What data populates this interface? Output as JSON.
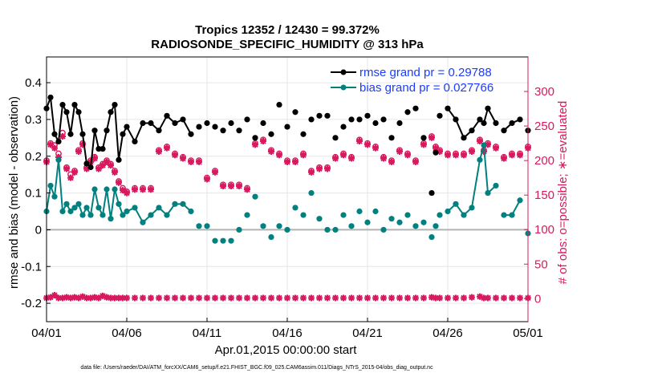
{
  "colors": {
    "rmse": "#000000",
    "bias": "#00807f",
    "obs": "#d9185f",
    "legend_text": "#1a3cff",
    "grid": "#e6e6e6",
    "zero_line": "#b3b3b3"
  },
  "chart_data": {
    "type": "line",
    "title": "Tropics 12352 / 12430 = 99.372%",
    "subtitle": "RADIOSONDE_SPECIFIC_HUMIDITY @ 313 hPa",
    "xlabel": "Apr.01,2015 00:00:00 start",
    "ylabel_left": "rmse and bias (model - observation)",
    "ylabel_right": "# of obs: o=possible; ∗=evaluated",
    "xlim": [
      0,
      30
    ],
    "ylim_left": [
      -0.25,
      0.47
    ],
    "ylim_right": [
      -33.3,
      350
    ],
    "x_tick_values": [
      0,
      5,
      10,
      15,
      20,
      25,
      30
    ],
    "x_tick_labels": [
      "04/01",
      "04/06",
      "04/11",
      "04/16",
      "04/21",
      "04/26",
      "05/01"
    ],
    "y_left_ticks": [
      -0.2,
      -0.1,
      0,
      0.1,
      0.2,
      0.3,
      0.4
    ],
    "y_left_tick_labels": [
      "-0.2",
      "-0.1",
      "0",
      "0.1",
      "0.2",
      "0.3",
      "0.4"
    ],
    "y_right_ticks": [
      0,
      50,
      100,
      150,
      200,
      250,
      300
    ],
    "y_right_tick_labels": [
      "0",
      "50",
      "100",
      "150",
      "200",
      "250",
      "300"
    ],
    "legend": [
      {
        "label": "rmse grand pr = 0.29788",
        "series": "rmse"
      },
      {
        "label": "bias grand pr = 0.027766",
        "series": "bias"
      }
    ],
    "series": [
      {
        "name": "rmse",
        "x": [
          0.0,
          0.25,
          0.5,
          0.75,
          1.0,
          1.25,
          1.5,
          1.75,
          2.0,
          2.25,
          2.5,
          2.75,
          3.0,
          3.25,
          3.5,
          3.75,
          4.0,
          4.25,
          4.5,
          4.75,
          5.0,
          5.5,
          6.0,
          6.5,
          7.0,
          7.5,
          8.0,
          8.5,
          9.0,
          9.5,
          10.0,
          10.5,
          11.0,
          11.5,
          12.0,
          12.5,
          13.0,
          13.5,
          14.0,
          14.5,
          15.0,
          15.5,
          16.0,
          16.5,
          17.0,
          17.5,
          18.0,
          18.5,
          19.0,
          19.5,
          20.0,
          20.5,
          21.0,
          21.5,
          22.0,
          22.5,
          23.0,
          23.5,
          24.0,
          24.25,
          24.5,
          25.0,
          25.5,
          26.0,
          26.5,
          27.0,
          27.25,
          27.5,
          28.0,
          28.5,
          29.0,
          29.5,
          30.0
        ],
        "values": [
          0.33,
          0.36,
          0.26,
          0.24,
          0.34,
          0.32,
          0.26,
          0.34,
          0.32,
          0.26,
          0.18,
          0.17,
          0.27,
          0.22,
          0.22,
          0.27,
          0.32,
          0.34,
          0.19,
          0.26,
          0.28,
          0.24,
          0.29,
          0.29,
          0.27,
          0.31,
          0.29,
          0.3,
          0.26,
          0.28,
          0.29,
          0.28,
          0.27,
          0.29,
          0.27,
          0.3,
          0.25,
          0.29,
          0.26,
          0.34,
          0.28,
          0.32,
          0.26,
          0.3,
          0.31,
          0.31,
          0.25,
          0.28,
          0.3,
          0.3,
          0.31,
          0.29,
          0.3,
          0.25,
          0.29,
          0.32,
          0.33,
          0.25,
          0.1,
          0.21,
          0.31,
          0.33,
          0.3,
          0.25,
          0.27,
          0.3,
          0.29,
          0.33,
          0.29,
          0.27,
          0.29,
          0.3,
          0.27
        ],
        "lines_segments": [
          [
            0,
            28
          ],
          [
            61,
            68
          ],
          [
            69,
            71
          ]
        ]
      },
      {
        "name": "bias",
        "x": [
          0.0,
          0.25,
          0.5,
          0.75,
          1.0,
          1.25,
          1.5,
          1.75,
          2.0,
          2.25,
          2.5,
          2.75,
          3.0,
          3.25,
          3.5,
          3.75,
          4.0,
          4.25,
          4.5,
          4.75,
          5.0,
          5.5,
          6.0,
          6.5,
          7.0,
          7.5,
          8.0,
          8.5,
          9.0,
          9.5,
          10.0,
          10.5,
          11.0,
          11.5,
          12.0,
          12.5,
          13.0,
          13.5,
          14.0,
          14.5,
          15.0,
          15.5,
          16.0,
          16.5,
          17.0,
          17.5,
          18.0,
          18.5,
          19.0,
          19.5,
          20.0,
          20.5,
          21.0,
          21.5,
          22.0,
          22.5,
          23.0,
          23.5,
          24.0,
          24.25,
          24.5,
          25.0,
          25.5,
          26.0,
          26.5,
          27.0,
          27.25,
          27.5,
          28.0,
          28.5,
          29.0,
          29.5,
          30.0
        ],
        "values": [
          0.05,
          0.12,
          0.09,
          0.19,
          0.05,
          0.07,
          0.05,
          0.06,
          0.07,
          0.04,
          0.06,
          0.04,
          0.11,
          0.06,
          0.04,
          0.11,
          0.03,
          0.11,
          0.07,
          0.04,
          0.05,
          0.06,
          0.02,
          0.04,
          0.06,
          0.04,
          0.07,
          0.07,
          0.05,
          0.01,
          0.01,
          -0.03,
          -0.03,
          -0.03,
          0.0,
          0.04,
          0.09,
          0.01,
          -0.02,
          0.01,
          0.0,
          0.06,
          0.04,
          0.1,
          0.03,
          0.0,
          0.0,
          0.04,
          0.01,
          0.05,
          0.02,
          0.05,
          0.0,
          0.03,
          0.02,
          0.04,
          0.01,
          0.02,
          -0.02,
          0.01,
          0.04,
          0.05,
          0.07,
          0.04,
          0.06,
          0.19,
          0.23,
          0.1,
          0.12,
          0.04,
          0.04,
          0.08,
          -0.01
        ],
        "lines_segments": [
          [
            0,
            28
          ],
          [
            61,
            68
          ],
          [
            69,
            71
          ]
        ]
      },
      {
        "name": "obs_possible",
        "x": [
          0.0,
          0.25,
          0.5,
          0.75,
          1.0,
          1.25,
          1.5,
          1.75,
          2.0,
          2.25,
          2.5,
          2.75,
          3.0,
          3.25,
          3.5,
          3.75,
          4.0,
          4.25,
          4.5,
          4.75,
          5.0,
          5.5,
          6.0,
          6.5,
          7.0,
          7.5,
          8.0,
          8.5,
          9.0,
          9.5,
          10.0,
          10.5,
          11.0,
          11.5,
          12.0,
          12.5,
          13.0,
          13.5,
          14.0,
          14.5,
          15.0,
          15.5,
          16.0,
          16.5,
          17.0,
          17.5,
          18.0,
          18.5,
          19.0,
          19.5,
          20.0,
          20.5,
          21.0,
          21.5,
          22.0,
          22.5,
          23.0,
          23.5,
          24.0,
          24.25,
          24.5,
          25.0,
          25.5,
          26.0,
          26.5,
          27.0,
          27.25,
          27.5,
          28.0,
          28.5,
          29.0,
          29.5,
          30.0
        ],
        "values": [
          200,
          225,
          222,
          210,
          240,
          190,
          180,
          185,
          215,
          225,
          190,
          200,
          205,
          190,
          195,
          200,
          195,
          185,
          170,
          160,
          155,
          160,
          160,
          160,
          215,
          220,
          210,
          205,
          200,
          200,
          175,
          185,
          165,
          165,
          165,
          160,
          225,
          230,
          215,
          210,
          200,
          200,
          210,
          185,
          190,
          190,
          205,
          210,
          205,
          230,
          225,
          220,
          205,
          200,
          215,
          210,
          200,
          225,
          235,
          220,
          215,
          210,
          210,
          210,
          215,
          230,
          215,
          225,
          220,
          205,
          210,
          210,
          220
        ]
      },
      {
        "name": "obs_evaluated",
        "x": [
          0.0,
          0.25,
          0.5,
          0.75,
          1.0,
          1.25,
          1.5,
          1.75,
          2.0,
          2.25,
          2.5,
          2.75,
          3.0,
          3.25,
          3.5,
          3.75,
          4.0,
          4.25,
          4.5,
          4.75,
          5.0,
          5.5,
          6.0,
          6.5,
          7.0,
          7.5,
          8.0,
          8.5,
          9.0,
          9.5,
          10.0,
          10.5,
          11.0,
          11.5,
          12.0,
          12.5,
          13.0,
          13.5,
          14.0,
          14.5,
          15.0,
          15.5,
          16.0,
          16.5,
          17.0,
          17.5,
          18.0,
          18.5,
          19.0,
          19.5,
          20.0,
          20.5,
          21.0,
          21.5,
          22.0,
          22.5,
          23.0,
          23.5,
          24.0,
          24.25,
          24.5,
          25.0,
          25.5,
          26.0,
          26.5,
          27.0,
          27.25,
          27.5,
          28.0,
          28.5,
          29.0,
          29.5,
          30.0
        ],
        "values": [
          198,
          223,
          218,
          205,
          235,
          188,
          175,
          183,
          213,
          223,
          188,
          198,
          203,
          188,
          193,
          198,
          193,
          183,
          168,
          157,
          153,
          158,
          158,
          158,
          213,
          218,
          208,
          203,
          198,
          198,
          173,
          183,
          163,
          163,
          163,
          158,
          223,
          228,
          213,
          208,
          198,
          198,
          208,
          183,
          188,
          188,
          203,
          208,
          203,
          228,
          223,
          218,
          203,
          198,
          213,
          208,
          198,
          223,
          233,
          218,
          213,
          208,
          208,
          208,
          213,
          228,
          213,
          223,
          218,
          203,
          208,
          208,
          218
        ]
      },
      {
        "name": "obs_zero_evaluated",
        "x": [
          0.0,
          0.25,
          0.5,
          0.75,
          1.0,
          1.25,
          1.5,
          1.75,
          2.0,
          2.25,
          2.5,
          2.75,
          3.0,
          3.25,
          3.5,
          3.75,
          4.0,
          4.25,
          4.5,
          4.75,
          5.0,
          5.5,
          6.0,
          6.5,
          7.0,
          7.5,
          8.0,
          8.5,
          9.0,
          9.5,
          10.0,
          10.5,
          11.0,
          11.5,
          12.0,
          12.5,
          13.0,
          13.5,
          14.0,
          14.5,
          15.0,
          15.5,
          16.0,
          16.5,
          17.0,
          17.5,
          18.0,
          18.5,
          19.0,
          19.5,
          20.0,
          20.5,
          21.0,
          21.5,
          22.0,
          22.5,
          23.0,
          23.5,
          24.0,
          24.25,
          24.5,
          25.0,
          25.5,
          26.0,
          26.5,
          27.0,
          27.25,
          27.5,
          28.0,
          28.5,
          29.0,
          29.5,
          30.0
        ],
        "values": [
          1,
          2,
          5,
          1,
          1,
          2,
          1,
          2,
          1,
          3,
          1,
          1,
          2,
          1,
          4,
          2,
          1,
          1,
          1,
          1,
          1,
          1,
          1,
          1,
          1,
          1,
          1,
          1,
          1,
          1,
          1,
          1,
          1,
          1,
          1,
          1,
          1,
          1,
          1,
          1,
          1,
          1,
          1,
          1,
          1,
          1,
          1,
          1,
          1,
          1,
          1,
          1,
          1,
          1,
          1,
          1,
          1,
          1,
          2,
          1,
          1,
          1,
          1,
          1,
          2,
          3,
          1,
          1,
          1,
          1,
          1,
          1,
          1
        ]
      }
    ]
  },
  "footer": {
    "data_file": "data file: /Users/raeder/DAI/ATM_forcXX/CAM6_setup/f.e21.FHIST_BGC.f09_025.CAM6assim.011/Diags_NTrS_2015-04/obs_diag_output.nc"
  }
}
